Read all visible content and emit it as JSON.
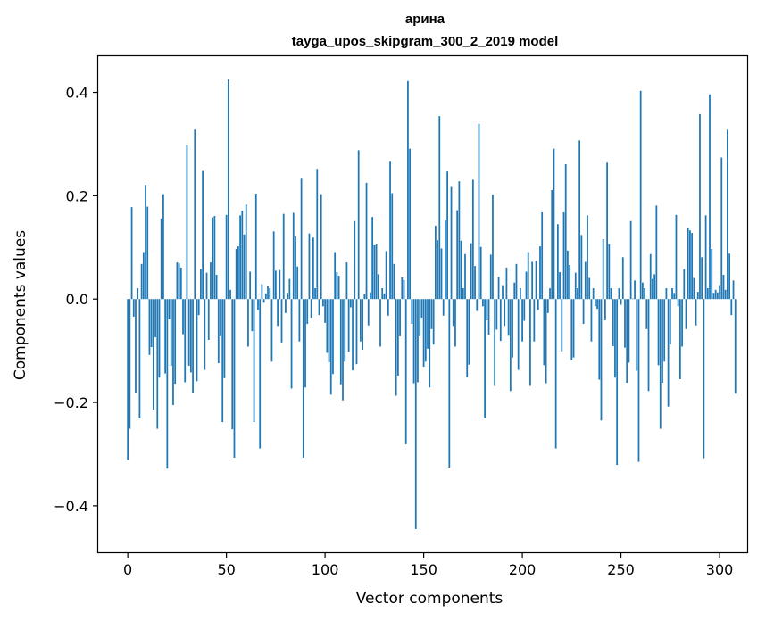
{
  "chart_data": {
    "type": "bar",
    "title_line1": "арина",
    "title_line2": "tayga_upos_skipgram_300_2_2019 model",
    "xlabel": "Vector components",
    "ylabel": "Components values",
    "xlim": [
      -15,
      314
    ],
    "ylim": [
      -0.49,
      0.47
    ],
    "x_ticks": [
      0,
      50,
      100,
      150,
      200,
      250,
      300
    ],
    "x_tick_labels": [
      "0",
      "50",
      "100",
      "150",
      "200",
      "250",
      "300"
    ],
    "y_ticks": [
      -0.4,
      -0.2,
      0.0,
      0.2,
      0.4
    ],
    "y_tick_labels": [
      "−0.4",
      "−0.2",
      "0.0",
      "0.2",
      "0.4"
    ],
    "bar_color": "#1f77b4",
    "values": [
      -0.312,
      -0.251,
      0.178,
      -0.034,
      -0.181,
      0.021,
      -0.231,
      0.068,
      0.091,
      0.221,
      0.179,
      -0.108,
      -0.093,
      -0.214,
      -0.074,
      -0.251,
      -0.152,
      0.156,
      0.203,
      -0.144,
      -0.328,
      -0.039,
      -0.129,
      -0.205,
      -0.164,
      0.071,
      0.069,
      0.061,
      -0.068,
      -0.161,
      0.298,
      -0.129,
      -0.142,
      -0.181,
      0.328,
      -0.159,
      -0.031,
      0.058,
      0.248,
      -0.137,
      0.051,
      -0.079,
      0.071,
      0.158,
      0.161,
      0.047,
      -0.124,
      -0.072,
      -0.238,
      -0.153,
      0.163,
      0.425,
      0.018,
      -0.252,
      -0.307,
      0.097,
      0.102,
      0.162,
      0.171,
      0.125,
      0.183,
      -0.092,
      0.053,
      -0.062,
      -0.238,
      0.204,
      -0.021,
      -0.289,
      0.029,
      -0.007,
      0.011,
      0.025,
      0.021,
      -0.121,
      0.131,
      0.055,
      -0.052,
      0.056,
      -0.084,
      0.165,
      -0.027,
      0.012,
      0.039,
      -0.173,
      0.167,
      0.121,
      0.063,
      -0.082,
      0.233,
      -0.307,
      -0.171,
      -0.048,
      0.127,
      -0.036,
      0.119,
      0.021,
      0.252,
      -0.031,
      0.203,
      -0.014,
      -0.046,
      -0.104,
      -0.122,
      -0.185,
      -0.145,
      0.091,
      0.052,
      0.045,
      -0.165,
      -0.196,
      -0.121,
      0.071,
      -0.102,
      -0.016,
      -0.138,
      0.151,
      -0.126,
      0.288,
      -0.082,
      -0.098,
      0.009,
      0.225,
      -0.051,
      0.013,
      0.159,
      0.104,
      0.107,
      0.048,
      -0.092,
      0.021,
      0.011,
      0.093,
      -0.032,
      0.266,
      0.205,
      0.068,
      -0.187,
      -0.148,
      -0.072,
      0.042,
      0.037,
      -0.281,
      0.422,
      0.291,
      -0.048,
      -0.163,
      -0.445,
      -0.161,
      -0.072,
      -0.036,
      -0.131,
      -0.121,
      -0.096,
      -0.171,
      -0.058,
      -0.088,
      0.142,
      0.114,
      0.354,
      0.098,
      -0.032,
      0.152,
      0.247,
      -0.326,
      0.217,
      -0.052,
      -0.092,
      0.172,
      0.228,
      0.113,
      0.021,
      0.087,
      -0.151,
      -0.127,
      0.108,
      0.231,
      0.064,
      -0.023,
      0.339,
      0.101,
      -0.014,
      -0.231,
      -0.041,
      -0.069,
      0.086,
      0.202,
      -0.168,
      -0.059,
      0.043,
      -0.081,
      0.027,
      -0.052,
      0.061,
      -0.071,
      -0.178,
      -0.113,
      0.032,
      0.068,
      -0.137,
      0.021,
      -0.082,
      -0.042,
      0.053,
      0.091,
      -0.168,
      0.072,
      -0.082,
      0.074,
      -0.021,
      0.102,
      0.168,
      -0.128,
      -0.163,
      -0.027,
      0.021,
      0.211,
      0.291,
      -0.289,
      0.145,
      0.052,
      -0.101,
      0.168,
      0.261,
      0.094,
      0.066,
      -0.118,
      -0.113,
      0.051,
      0.021,
      0.307,
      0.124,
      -0.048,
      0.072,
      0.162,
      0.041,
      -0.082,
      0.021,
      -0.014,
      -0.019,
      -0.156,
      -0.235,
      0.116,
      -0.041,
      0.264,
      0.106,
      0.021,
      -0.091,
      -0.152,
      -0.321,
      0.021,
      -0.011,
      0.081,
      -0.094,
      -0.162,
      -0.123,
      0.151,
      0.001,
      0.036,
      -0.139,
      -0.315,
      0.403,
      0.032,
      0.021,
      -0.058,
      -0.178,
      0.087,
      0.039,
      0.048,
      0.181,
      -0.128,
      -0.251,
      -0.162,
      -0.121,
      0.021,
      -0.208,
      -0.088,
      0.021,
      0.012,
      0.163,
      -0.014,
      -0.155,
      -0.092,
      0.058,
      -0.058,
      0.137,
      0.133,
      0.128,
      0.041,
      -0.051,
      0.014,
      0.358,
      0.081,
      -0.308,
      0.162,
      0.021,
      0.396,
      0.097,
      0.012,
      0.018,
      0.013,
      0.027,
      0.274,
      0.047,
      0.018,
      0.328,
      0.088,
      -0.031,
      0.036,
      -0.183
    ]
  }
}
